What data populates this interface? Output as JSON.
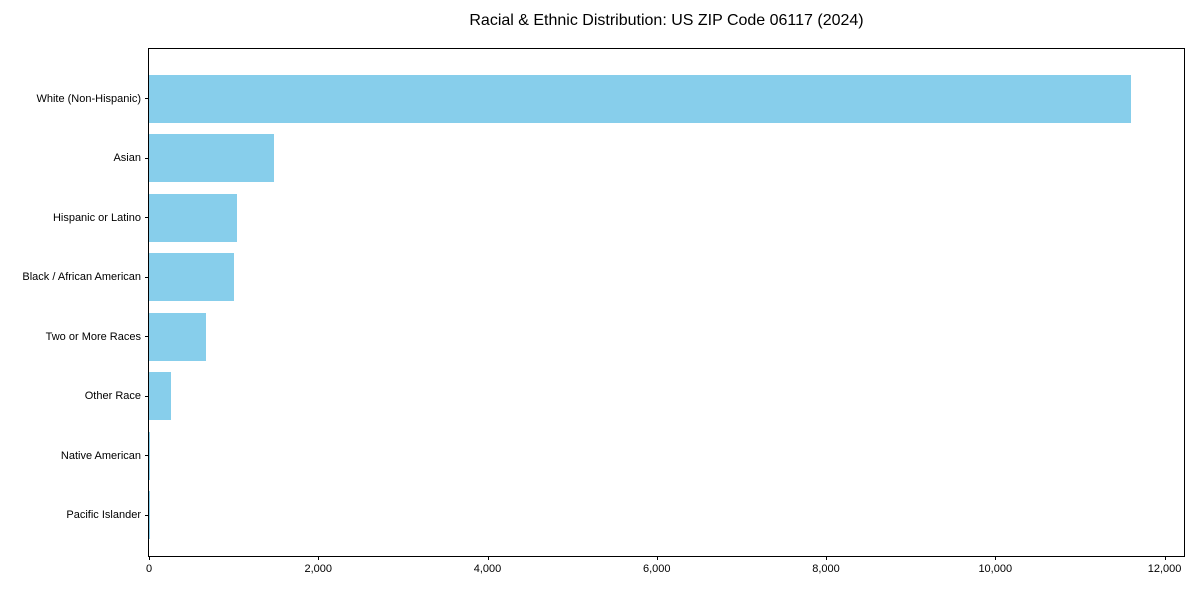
{
  "title": "Racial & Ethnic Distribution: US ZIP Code 06117 (2024)",
  "colors": {
    "bar": "#87CEEB",
    "axis": "#000000",
    "background": "#FFFFFF",
    "text": "#000000"
  },
  "chart_data": {
    "type": "bar",
    "orientation": "horizontal",
    "title": "Racial & Ethnic Distribution: US ZIP Code 06117 (2024)",
    "categories": [
      "White (Non-Hispanic)",
      "Asian",
      "Hispanic or Latino",
      "Black / African American",
      "Two or More Races",
      "Other Race",
      "Native American",
      "Pacific Islander"
    ],
    "values": [
      11600,
      1480,
      1040,
      1010,
      670,
      260,
      10,
      5
    ],
    "xlabel": "",
    "ylabel": "",
    "xlim": [
      0,
      12230
    ],
    "xticks": [
      0,
      2000,
      4000,
      6000,
      8000,
      10000,
      12000
    ],
    "xtick_labels": [
      "0",
      "2,000",
      "4,000",
      "6,000",
      "8,000",
      "10,000",
      "12,000"
    ],
    "bar_color": "#87CEEB",
    "grid": false,
    "legend": null
  }
}
